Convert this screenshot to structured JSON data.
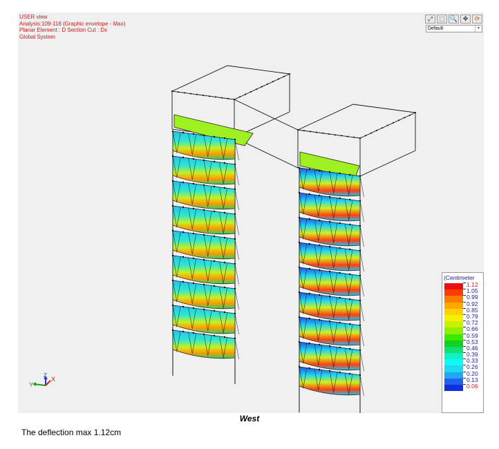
{
  "header": {
    "line1": "USER view",
    "line2": "Analysis:109-118 (Graphic envelope - Max)",
    "line3": "Planar Element : D Section Cut : Dx",
    "line4": "Global System"
  },
  "toolbar": {
    "buttons": [
      "zoom-fit-icon",
      "zoom-window-icon",
      "zoom-icon",
      "pan-icon",
      "rotate-icon"
    ],
    "view_select_value": "Default"
  },
  "legend": {
    "title": "(Centimeter",
    "values": [
      "1.12",
      "1.05",
      "0.99",
      "0.92",
      "0.85",
      "0.79",
      "0.72",
      "0.66",
      "0.59",
      "0.53",
      "0.46",
      "0.39",
      "0.33",
      "0.26",
      "0.20",
      "0.13",
      "0.06"
    ],
    "colors": [
      "#e81010",
      "#ff3a00",
      "#ff7a00",
      "#ffa800",
      "#ffd000",
      "#f5f000",
      "#c8f000",
      "#8ef000",
      "#3ce800",
      "#10d020",
      "#10e070",
      "#10f0c0",
      "#10f8f8",
      "#20d8f0",
      "#20a8f0",
      "#2060f0",
      "#1030e0"
    ]
  },
  "axes": {
    "y_label": "Y",
    "z_label": "Z",
    "x_label": "X"
  },
  "caption": "West",
  "note": "The deflection max 1.12cm"
}
